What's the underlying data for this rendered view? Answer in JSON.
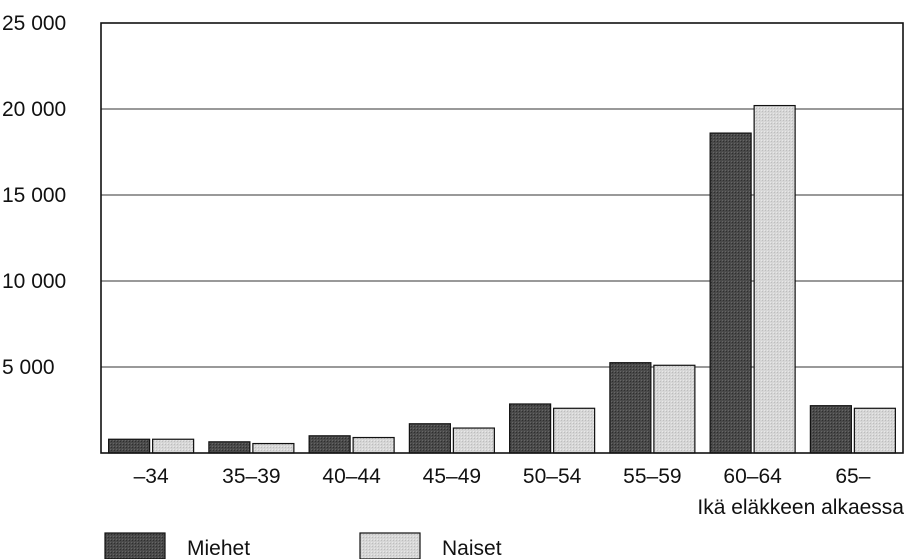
{
  "chart_data": {
    "type": "bar",
    "title": "",
    "xlabel": "Ikä eläkkeen alkaessa",
    "ylabel": "",
    "categories": [
      "–34",
      "35–39",
      "40–44",
      "45–49",
      "50–54",
      "55–59",
      "60–64",
      "65–"
    ],
    "series": [
      {
        "name": "Miehet",
        "color": "#4a4a4a",
        "values": [
          800,
          650,
          1000,
          1700,
          2850,
          5250,
          18600,
          2750
        ]
      },
      {
        "name": "Naiset",
        "color": "#d6d6d6",
        "values": [
          800,
          550,
          900,
          1450,
          2600,
          5100,
          20200,
          2600
        ]
      }
    ],
    "ylim": [
      0,
      25000
    ],
    "yticks": [
      {
        "value": 5000,
        "label": "5 000"
      },
      {
        "value": 10000,
        "label": "10 000"
      },
      {
        "value": 15000,
        "label": "15 000"
      },
      {
        "value": 20000,
        "label": "20 000"
      },
      {
        "value": 25000,
        "label": "25 000"
      }
    ],
    "grid": true,
    "legend": "bottom-left"
  }
}
